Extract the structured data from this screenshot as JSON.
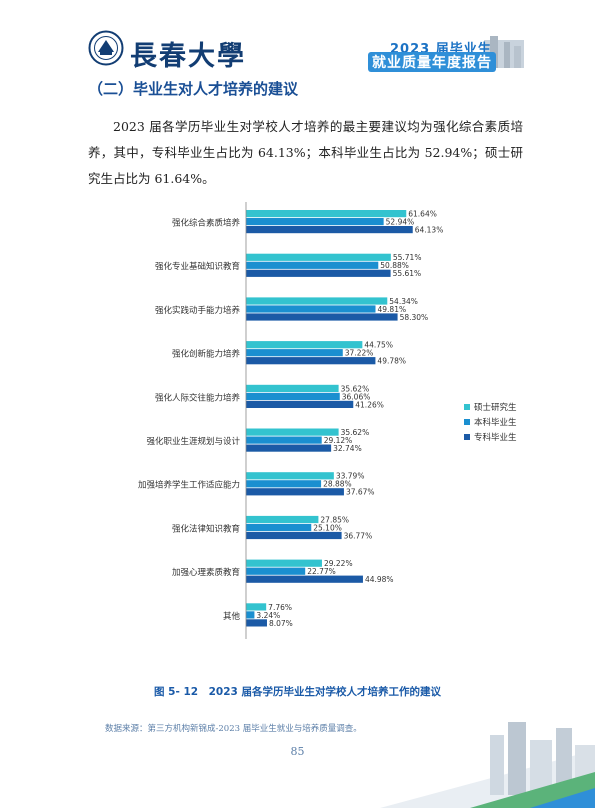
{
  "header": {
    "logo_text": "長春大學",
    "badge_year": "2023 届毕业生",
    "badge_title": "就业质量年度报告"
  },
  "section_heading": "（二）毕业生对人才培养的建议",
  "body_text": "2023 届各学历毕业生对学校人才培养的最主要建议均为强化综合素质培养，其中，专科毕业生占比为 64.13%；本科毕业生占比为 52.94%；硕士研究生占比为 61.64%。",
  "chart_data": {
    "type": "bar",
    "orientation": "horizontal",
    "categories": [
      "强化综合素质培养",
      "强化专业基础知识教育",
      "强化实践动手能力培养",
      "强化创新能力培养",
      "强化人际交往能力培养",
      "强化职业生涯规划与设计",
      "加强培养学生工作适应能力",
      "强化法律知识教育",
      "加强心理素质教育",
      "其他"
    ],
    "series": [
      {
        "name": "硕士研究生",
        "color": "#33c3cf",
        "values": [
          61.64,
          55.71,
          54.34,
          44.75,
          35.62,
          35.62,
          33.79,
          27.85,
          29.22,
          7.76
        ]
      },
      {
        "name": "本科毕业生",
        "color": "#1a8fd0",
        "values": [
          52.94,
          50.88,
          49.81,
          37.22,
          36.06,
          29.12,
          28.88,
          25.1,
          22.77,
          3.24
        ]
      },
      {
        "name": "专科毕业生",
        "color": "#1b5aa6",
        "values": [
          64.13,
          55.61,
          58.3,
          49.78,
          41.26,
          32.74,
          37.67,
          36.77,
          44.98,
          8.07
        ]
      }
    ],
    "value_labels": [
      [
        "61.64%",
        "55.71%",
        "54.34%",
        "44.75%",
        "35.62%",
        "35.62%",
        "33.79%",
        "27.85%",
        "29.22%",
        "7.76%"
      ],
      [
        "52.94%",
        "50.88%",
        "49.81%",
        "37.22%",
        "36.06%",
        "29.12%",
        "28.88%",
        "25.10%",
        "22.77%",
        "3.24%"
      ],
      [
        "64.13%",
        "55.61%",
        "58.30%",
        "49.78%",
        "41.26%",
        "32.74%",
        "37.67%",
        "36.77%",
        "44.98%",
        "8.07%"
      ]
    ],
    "legend_placement": "right",
    "xlim": [
      0,
      100
    ],
    "grid": false
  },
  "caption": "图 5- 12　2023 届各学历毕业生对学校人才培养工作的建议",
  "source": "数据来源：第三方机构新锦成-2023 届毕业生就业与培养质量调查。",
  "page_number": "85"
}
